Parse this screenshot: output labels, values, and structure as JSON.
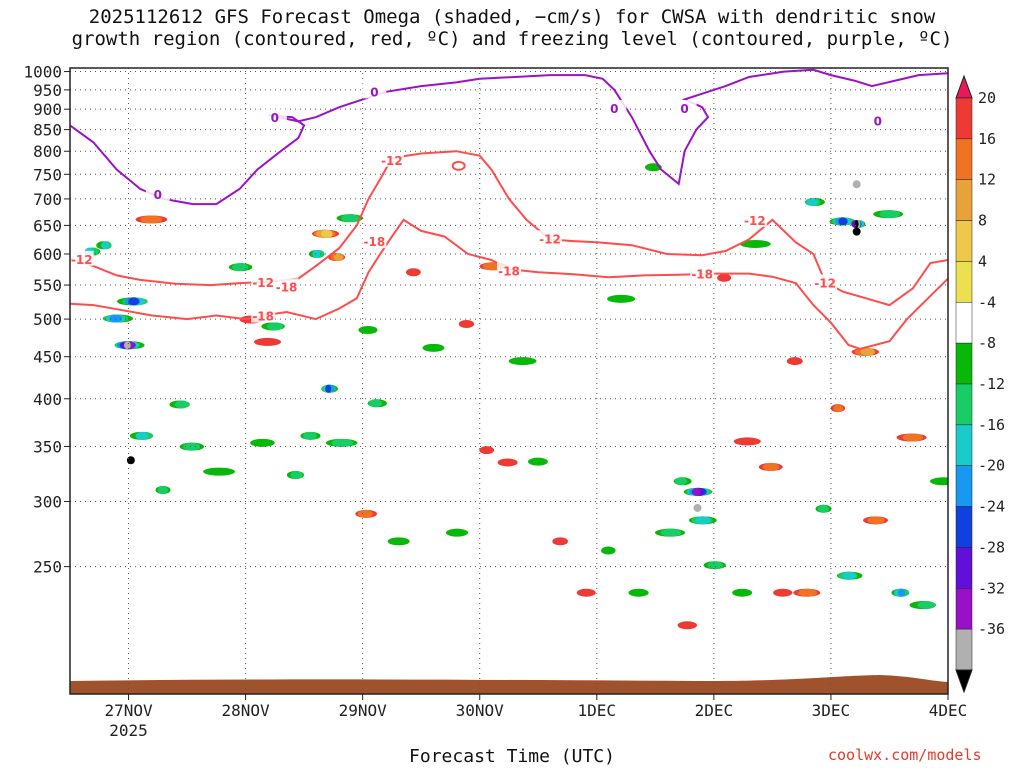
{
  "title": "2025112612 GFS Forecast Omega (shaded, −cm/s) for CWSA with dendritic snow\ngrowth region (contoured, red, ºC) and freezing level (contoured, purple, ºC)",
  "credit": "coolwx.com/models",
  "chart_data": {
    "type": "heatmap",
    "title": "2025112612 GFS Forecast Omega (shaded, −cm/s) for CWSA with dendritic snow growth region (contoured, red, ºC) and freezing level (contoured, purple, ºC)",
    "xlabel": "Forecast Time (UTC)",
    "ylabel": "",
    "x_ticks": [
      "27NOV",
      "28NOV",
      "29NOV",
      "30NOV",
      "1DEC",
      "2DEC",
      "3DEC",
      "4DEC"
    ],
    "x_year_label": "2025",
    "x_range_days": [
      26.5,
      34.0
    ],
    "y_ticks": [
      250,
      300,
      350,
      400,
      450,
      500,
      550,
      600,
      650,
      700,
      750,
      800,
      850,
      900,
      950,
      1000
    ],
    "y_range_hpa": [
      1010,
      175
    ],
    "grid": true,
    "colorbar": {
      "levels": [
        20,
        16,
        12,
        8,
        4,
        -4,
        -8,
        -12,
        -16,
        -20,
        -24,
        -28,
        -32,
        -36
      ],
      "colors": [
        "#e8185a",
        "#ee3a35",
        "#f07323",
        "#e8a23a",
        "#eec84a",
        "#ece050",
        "#ffffff",
        "#08b808",
        "#18cc66",
        "#18cccc",
        "#1898f0",
        "#1040e0",
        "#6010d8",
        "#9810c8",
        "#b0b0b0",
        "#000000"
      ]
    },
    "contours": [
      {
        "name": "-18",
        "color": "#ff4c4c",
        "label_positions": [
          [
            28.15,
            505
          ],
          [
            28.35,
            548
          ],
          [
            29.1,
            622
          ],
          [
            30.25,
            573
          ],
          [
            31.9,
            568
          ]
        ]
      },
      {
        "name": "-12",
        "color": "#ff4c4c",
        "label_positions": [
          [
            28.15,
            555
          ],
          [
            26.6,
            592
          ],
          [
            29.25,
            781
          ],
          [
            30.6,
            627
          ],
          [
            32.35,
            660
          ],
          [
            32.95,
            554
          ]
        ]
      },
      {
        "name": "0",
        "color": "#9c12c8",
        "label_positions": [
          [
            27.25,
            710
          ],
          [
            28.25,
            880
          ],
          [
            29.1,
            946
          ],
          [
            31.15,
            903
          ],
          [
            31.75,
            903
          ],
          [
            33.4,
            872
          ]
        ]
      }
    ]
  }
}
